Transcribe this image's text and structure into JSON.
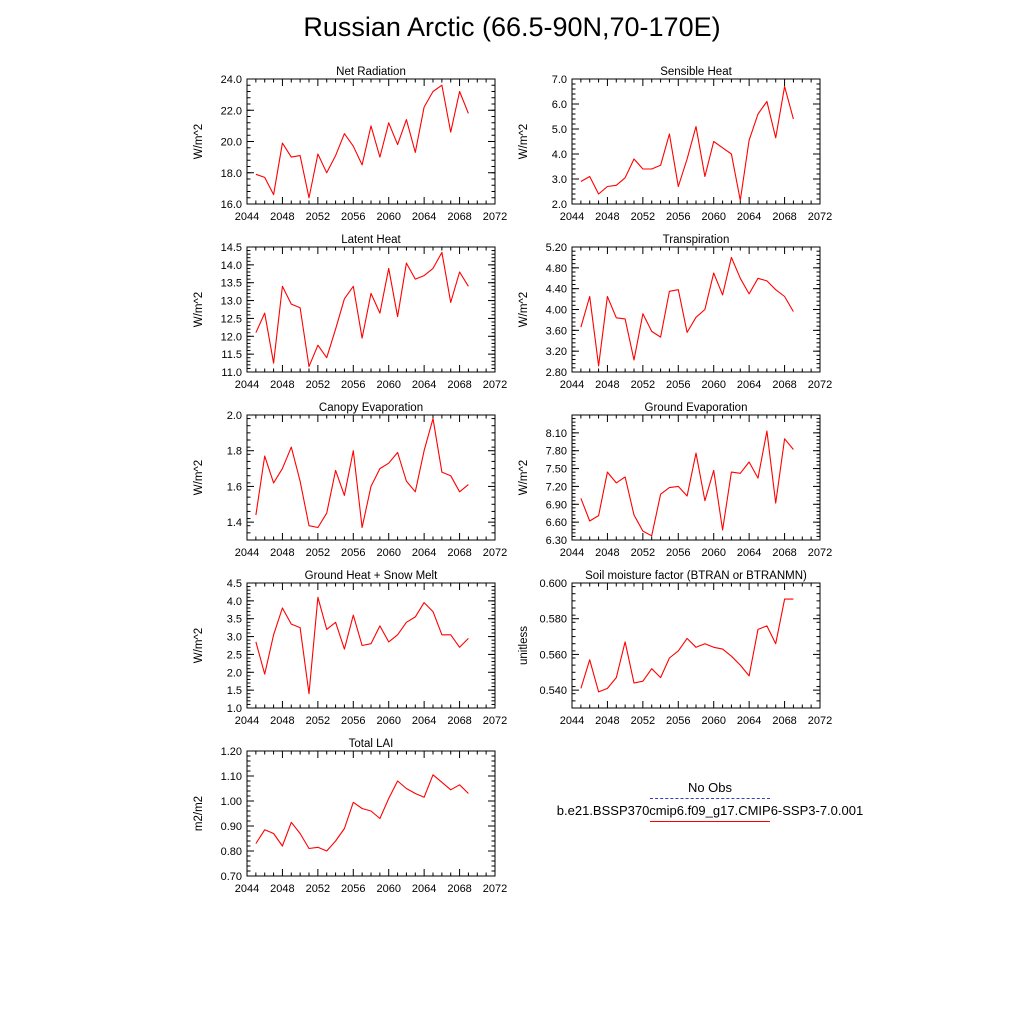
{
  "title": "Russian Arctic (66.5-90N,70-170E)",
  "legend": {
    "obs_label": "No Obs",
    "model_label": "b.e21.BSSP370cmip6.f09_g17.CMIP6-SSP3-7.0.001",
    "obs_color": "#3a3ad0",
    "model_color": "#ff0000"
  },
  "chart_data": [
    {
      "type": "line",
      "title": "Net Radiation",
      "ylabel": "W/m^2",
      "xlim": [
        2044,
        2072
      ],
      "ylim": [
        16.0,
        24.0
      ],
      "xticks": [
        "2044",
        "2048",
        "2052",
        "2056",
        "2060",
        "2064",
        "2068",
        "2072"
      ],
      "yticks": [
        "16.0",
        "18.0",
        "20.0",
        "22.0",
        "24.0"
      ],
      "x": [
        2045,
        2046,
        2047,
        2048,
        2049,
        2050,
        2051,
        2052,
        2053,
        2054,
        2055,
        2056,
        2057,
        2058,
        2059,
        2060,
        2061,
        2062,
        2063,
        2064,
        2065,
        2066,
        2067,
        2068,
        2069
      ],
      "series": [
        {
          "values": [
            17.9,
            17.7,
            16.6,
            19.9,
            19.0,
            19.1,
            16.4,
            19.2,
            18.0,
            19.1,
            20.5,
            19.7,
            18.5,
            21.0,
            19.0,
            21.2,
            19.8,
            21.4,
            19.3,
            22.2,
            23.2,
            23.6,
            20.6,
            23.2,
            21.8
          ]
        }
      ]
    },
    {
      "type": "line",
      "title": "Sensible Heat",
      "ylabel": "W/m^2",
      "xlim": [
        2044,
        2072
      ],
      "ylim": [
        2.0,
        7.0
      ],
      "xticks": [
        "2044",
        "2048",
        "2052",
        "2056",
        "2060",
        "2064",
        "2068",
        "2072"
      ],
      "yticks": [
        "2.0",
        "3.0",
        "4.0",
        "5.0",
        "6.0",
        "7.0"
      ],
      "x": [
        2045,
        2046,
        2047,
        2048,
        2049,
        2050,
        2051,
        2052,
        2053,
        2054,
        2055,
        2056,
        2057,
        2058,
        2059,
        2060,
        2061,
        2062,
        2063,
        2064,
        2065,
        2066,
        2067,
        2068,
        2069
      ],
      "series": [
        {
          "values": [
            2.9,
            3.1,
            2.4,
            2.7,
            2.75,
            3.05,
            3.8,
            3.4,
            3.4,
            3.55,
            4.8,
            2.7,
            3.8,
            5.1,
            3.1,
            4.5,
            4.25,
            4.0,
            2.15,
            4.55,
            5.6,
            6.1,
            4.65,
            6.7,
            5.4
          ]
        }
      ]
    },
    {
      "type": "line",
      "title": "Latent Heat",
      "ylabel": "W/m^2",
      "xlim": [
        2044,
        2072
      ],
      "ylim": [
        11.0,
        14.5
      ],
      "xticks": [
        "2044",
        "2048",
        "2052",
        "2056",
        "2060",
        "2064",
        "2068",
        "2072"
      ],
      "yticks": [
        "11.0",
        "11.5",
        "12.0",
        "12.5",
        "13.0",
        "13.5",
        "14.0",
        "14.5"
      ],
      "x": [
        2045,
        2046,
        2047,
        2048,
        2049,
        2050,
        2051,
        2052,
        2053,
        2054,
        2055,
        2056,
        2057,
        2058,
        2059,
        2060,
        2061,
        2062,
        2063,
        2064,
        2065,
        2066,
        2067,
        2068,
        2069
      ],
      "series": [
        {
          "values": [
            12.1,
            12.65,
            11.25,
            13.4,
            12.9,
            12.8,
            11.15,
            11.75,
            11.4,
            12.2,
            13.05,
            13.4,
            11.95,
            13.2,
            12.65,
            13.9,
            12.55,
            14.05,
            13.6,
            13.7,
            13.9,
            14.35,
            12.95,
            13.8,
            13.4
          ]
        }
      ]
    },
    {
      "type": "line",
      "title": "Transpiration",
      "ylabel": "W/m^2",
      "xlim": [
        2044,
        2072
      ],
      "ylim": [
        2.8,
        5.2
      ],
      "xticks": [
        "2044",
        "2048",
        "2052",
        "2056",
        "2060",
        "2064",
        "2068",
        "2072"
      ],
      "yticks": [
        "2.80",
        "3.20",
        "3.60",
        "4.00",
        "4.40",
        "4.80",
        "5.20"
      ],
      "x": [
        2045,
        2046,
        2047,
        2048,
        2049,
        2050,
        2051,
        2052,
        2053,
        2054,
        2055,
        2056,
        2057,
        2058,
        2059,
        2060,
        2061,
        2062,
        2063,
        2064,
        2065,
        2066,
        2067,
        2068,
        2069
      ],
      "series": [
        {
          "values": [
            3.66,
            4.25,
            2.92,
            4.25,
            3.84,
            3.82,
            3.03,
            3.92,
            3.58,
            3.47,
            4.35,
            4.38,
            3.56,
            3.85,
            4.0,
            4.7,
            4.28,
            5.0,
            4.6,
            4.3,
            4.6,
            4.55,
            4.38,
            4.25,
            3.96
          ]
        }
      ]
    },
    {
      "type": "line",
      "title": "Canopy Evaporation",
      "ylabel": "W/m^2",
      "xlim": [
        2044,
        2072
      ],
      "ylim": [
        1.3,
        2.0
      ],
      "xticks": [
        "2044",
        "2048",
        "2052",
        "2056",
        "2060",
        "2064",
        "2068",
        "2072"
      ],
      "yticks": [
        "1.4",
        "1.6",
        "1.8",
        "2.0"
      ],
      "x": [
        2045,
        2046,
        2047,
        2048,
        2049,
        2050,
        2051,
        2052,
        2053,
        2054,
        2055,
        2056,
        2057,
        2058,
        2059,
        2060,
        2061,
        2062,
        2063,
        2064,
        2065,
        2066,
        2067,
        2068,
        2069
      ],
      "series": [
        {
          "values": [
            1.44,
            1.77,
            1.62,
            1.7,
            1.82,
            1.63,
            1.38,
            1.37,
            1.45,
            1.69,
            1.55,
            1.8,
            1.37,
            1.6,
            1.7,
            1.73,
            1.79,
            1.63,
            1.57,
            1.8,
            1.98,
            1.68,
            1.66,
            1.57,
            1.61
          ]
        }
      ]
    },
    {
      "type": "line",
      "title": "Ground Evaporation",
      "ylabel": "W/m^2",
      "xlim": [
        2044,
        2072
      ],
      "ylim": [
        6.3,
        8.4
      ],
      "xticks": [
        "2044",
        "2048",
        "2052",
        "2056",
        "2060",
        "2064",
        "2068",
        "2072"
      ],
      "yticks": [
        "6.30",
        "6.60",
        "6.90",
        "7.20",
        "7.50",
        "7.80",
        "8.10"
      ],
      "x": [
        2045,
        2046,
        2047,
        2048,
        2049,
        2050,
        2051,
        2052,
        2053,
        2054,
        2055,
        2056,
        2057,
        2058,
        2059,
        2060,
        2061,
        2062,
        2063,
        2064,
        2065,
        2066,
        2067,
        2068,
        2069
      ],
      "series": [
        {
          "values": [
            7.0,
            6.62,
            6.71,
            7.44,
            7.26,
            7.36,
            6.72,
            6.45,
            6.37,
            7.07,
            7.18,
            7.2,
            7.04,
            7.76,
            6.96,
            7.47,
            6.47,
            7.44,
            7.42,
            7.61,
            7.34,
            8.13,
            6.92,
            8.0,
            7.82
          ]
        }
      ]
    },
    {
      "type": "line",
      "title": "Ground Heat + Snow Melt",
      "ylabel": "W/m^2",
      "xlim": [
        2044,
        2072
      ],
      "ylim": [
        1.0,
        4.5
      ],
      "xticks": [
        "2044",
        "2048",
        "2052",
        "2056",
        "2060",
        "2064",
        "2068",
        "2072"
      ],
      "yticks": [
        "1.0",
        "1.5",
        "2.0",
        "2.5",
        "3.0",
        "3.5",
        "4.0",
        "4.5"
      ],
      "x": [
        2045,
        2046,
        2047,
        2048,
        2049,
        2050,
        2051,
        2052,
        2053,
        2054,
        2055,
        2056,
        2057,
        2058,
        2059,
        2060,
        2061,
        2062,
        2063,
        2064,
        2065,
        2066,
        2067,
        2068,
        2069
      ],
      "series": [
        {
          "values": [
            2.85,
            1.95,
            3.05,
            3.8,
            3.35,
            3.25,
            1.4,
            4.1,
            3.2,
            3.4,
            2.65,
            3.6,
            2.75,
            2.8,
            3.3,
            2.85,
            3.05,
            3.4,
            3.55,
            3.95,
            3.7,
            3.05,
            3.05,
            2.7,
            2.95
          ]
        }
      ]
    },
    {
      "type": "line",
      "title": "Soil moisture factor (BTRAN or BTRANMN)",
      "ylabel": "unitless",
      "xlim": [
        2044,
        2072
      ],
      "ylim": [
        0.53,
        0.6
      ],
      "xticks": [
        "2044",
        "2048",
        "2052",
        "2056",
        "2060",
        "2064",
        "2068",
        "2072"
      ],
      "yticks": [
        "0.540",
        "0.560",
        "0.580",
        "0.600"
      ],
      "x": [
        2045,
        2046,
        2047,
        2048,
        2049,
        2050,
        2051,
        2052,
        2053,
        2054,
        2055,
        2056,
        2057,
        2058,
        2059,
        2060,
        2061,
        2062,
        2063,
        2064,
        2065,
        2066,
        2067,
        2068,
        2069
      ],
      "series": [
        {
          "values": [
            0.541,
            0.557,
            0.539,
            0.541,
            0.547,
            0.567,
            0.544,
            0.545,
            0.552,
            0.547,
            0.558,
            0.562,
            0.569,
            0.564,
            0.566,
            0.564,
            0.563,
            0.559,
            0.554,
            0.548,
            0.574,
            0.576,
            0.566,
            0.591,
            0.591
          ]
        }
      ]
    },
    {
      "type": "line",
      "title": "Total LAI",
      "ylabel": "m2/m2",
      "xlim": [
        2044,
        2072
      ],
      "ylim": [
        0.7,
        1.2
      ],
      "xticks": [
        "2044",
        "2048",
        "2052",
        "2056",
        "2060",
        "2064",
        "2068",
        "2072"
      ],
      "yticks": [
        "0.70",
        "0.80",
        "0.90",
        "1.00",
        "1.10",
        "1.20"
      ],
      "x": [
        2045,
        2046,
        2047,
        2048,
        2049,
        2050,
        2051,
        2052,
        2053,
        2054,
        2055,
        2056,
        2057,
        2058,
        2059,
        2060,
        2061,
        2062,
        2063,
        2064,
        2065,
        2066,
        2067,
        2068,
        2069
      ],
      "series": [
        {
          "values": [
            0.83,
            0.885,
            0.87,
            0.82,
            0.915,
            0.87,
            0.81,
            0.815,
            0.8,
            0.84,
            0.89,
            0.995,
            0.97,
            0.96,
            0.93,
            1.01,
            1.08,
            1.05,
            1.03,
            1.015,
            1.105,
            1.075,
            1.045,
            1.065,
            1.03
          ]
        }
      ]
    }
  ]
}
